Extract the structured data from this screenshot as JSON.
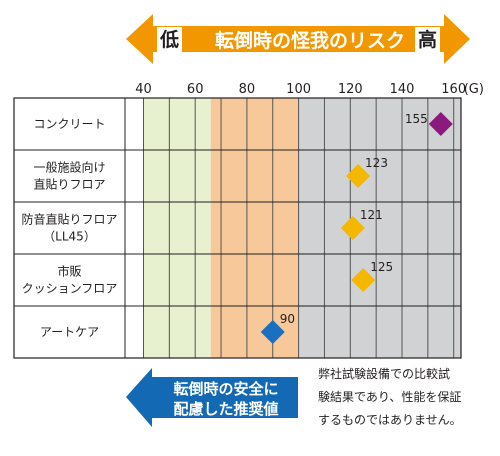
{
  "chart_data": {
    "type": "scatter",
    "title": "転倒時の怪我のリスク",
    "risk_low_label": "低",
    "risk_high_label": "高",
    "x_ticks": [
      "40",
      "60",
      "80",
      "100",
      "120",
      "140",
      "160"
    ],
    "x_unit": "(G)",
    "xlim": [
      27,
      163
    ],
    "categories": [
      {
        "lines": [
          "コンクリート"
        ],
        "value": 155,
        "marker_color": "#8b1a7e"
      },
      {
        "lines": [
          "一般施設向け",
          "直貼りフロア"
        ],
        "value": 123,
        "marker_color": "#f5b800"
      },
      {
        "lines": [
          "防音直貼りフロア",
          "（LL45）"
        ],
        "value": 121,
        "marker_color": "#f5b800"
      },
      {
        "lines": [
          "市販",
          "クッションフロア"
        ],
        "value": 125,
        "marker_color": "#f5b800"
      },
      {
        "lines": [
          "アートケア"
        ],
        "value": 90,
        "marker_color": "#1a6fc0"
      }
    ],
    "zones": [
      {
        "from": 40,
        "to": 66,
        "color": "#e7f0cf"
      },
      {
        "from": 66,
        "to": 100,
        "color": "#f7c99a"
      },
      {
        "from": 100,
        "to": 163,
        "color": "#d1d2d4"
      }
    ],
    "recommended_label_lines": [
      "転倒時の安全に",
      "配慮した推奨値"
    ],
    "note_lines": [
      "弊社試験設備での比較試",
      "験結果であり、性能を保証",
      "するものではありません。"
    ],
    "colors": {
      "top_arrow": "#f29700",
      "bottom_arrow": "#1469b4",
      "grid": "#555555",
      "frame": "#231f20"
    }
  }
}
